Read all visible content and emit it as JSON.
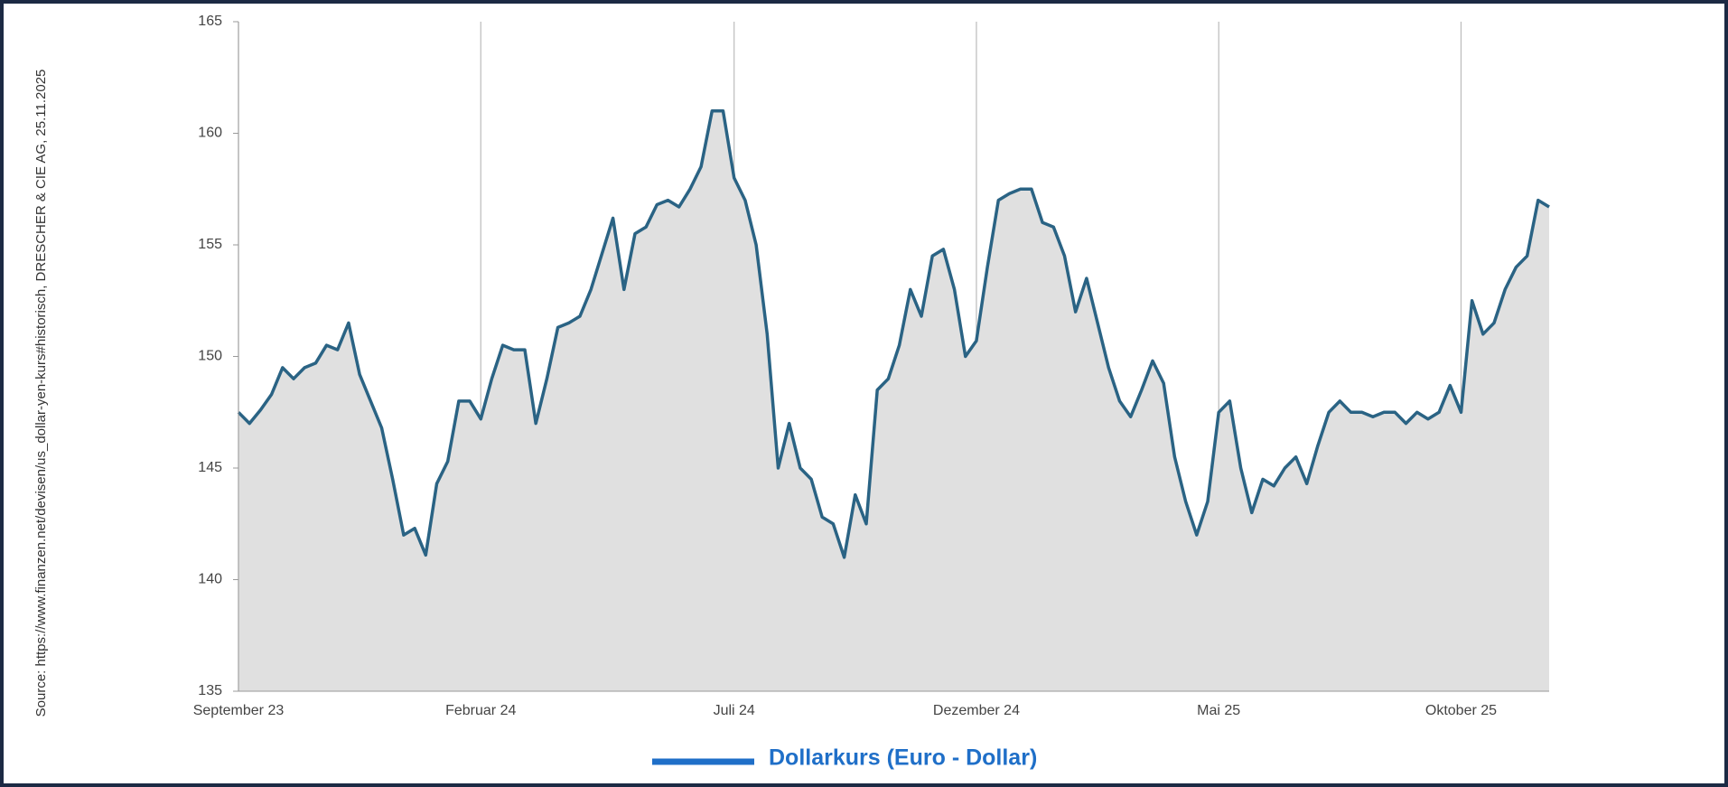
{
  "chart_data": {
    "type": "line",
    "source": "Source: https://www.finanzen.net/devisen/us_dollar-yen-kurs#historisch, DRESCHER & CIE AG, 25.11.2025",
    "categories": [
      "September 23",
      null,
      null,
      null,
      null,
      null,
      null,
      null,
      null,
      null,
      null,
      null,
      null,
      null,
      null,
      null,
      null,
      null,
      null,
      null,
      null,
      null,
      "Februar 24",
      null,
      null,
      null,
      null,
      null,
      null,
      null,
      null,
      null,
      null,
      null,
      null,
      null,
      null,
      null,
      null,
      null,
      null,
      null,
      null,
      null,
      null,
      "Juli 24",
      null,
      null,
      null,
      null,
      null,
      null,
      null,
      null,
      null,
      null,
      null,
      null,
      null,
      null,
      null,
      null,
      null,
      null,
      null,
      null,
      null,
      "Dezember 24",
      null,
      null,
      null,
      null,
      null,
      null,
      null,
      null,
      null,
      null,
      null,
      null,
      null,
      null,
      null,
      null,
      null,
      null,
      null,
      null,
      null,
      "Mai 25",
      null,
      null,
      null,
      null,
      null,
      null,
      null,
      null,
      null,
      null,
      null,
      null,
      null,
      null,
      null,
      null,
      null,
      null,
      null,
      null,
      null,
      "Oktober 25",
      null,
      null,
      null,
      null,
      null,
      null,
      null,
      null
    ],
    "series": [
      {
        "name": "Dollarkurs (Euro - Dollar)",
        "color": "#2a6384",
        "legend_color": "#1f6fc8",
        "values": [
          147.5,
          147,
          147.6,
          148.3,
          149.5,
          149,
          149.5,
          149.7,
          150.5,
          150.3,
          151.5,
          149.2,
          148,
          146.8,
          144.5,
          142,
          142.3,
          141.1,
          144.3,
          145.3,
          148,
          148,
          147.2,
          149,
          150.5,
          150.3,
          150.3,
          147,
          149,
          151.3,
          151.5,
          151.8,
          153,
          154.6,
          156.2,
          153,
          155.5,
          155.8,
          156.8,
          157,
          156.7,
          157.5,
          158.5,
          161,
          161,
          158,
          157,
          155,
          151,
          145,
          147,
          145,
          144.5,
          142.8,
          142.5,
          141,
          143.8,
          142.5,
          148.5,
          149,
          150.5,
          153,
          151.8,
          154.5,
          154.8,
          153,
          150,
          150.7,
          154,
          157,
          157.3,
          157.5,
          157.5,
          156,
          155.8,
          154.5,
          152,
          153.5,
          151.5,
          149.5,
          148,
          147.3,
          148.5,
          149.8,
          148.8,
          145.5,
          143.5,
          142,
          143.5,
          147.5,
          148,
          145,
          143,
          144.5,
          144.2,
          145,
          145.5,
          144.3,
          146,
          147.5,
          148,
          147.5,
          147.5,
          147.3,
          147.5,
          147.5,
          147,
          147.5,
          147.2,
          147.5,
          148.7,
          147.5,
          152.5,
          151,
          151.5,
          153,
          154,
          154.5,
          157,
          156.7
        ]
      }
    ],
    "ylim": [
      135,
      165
    ],
    "yticks": [
      135,
      140,
      145,
      150,
      155,
      160,
      165
    ],
    "area_color": "#e0e0e0"
  }
}
